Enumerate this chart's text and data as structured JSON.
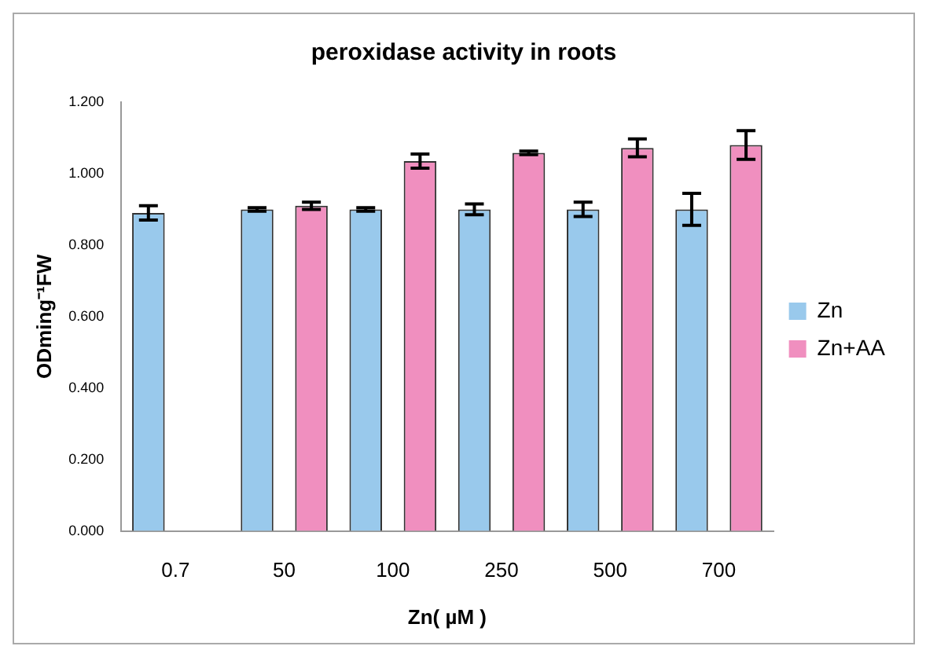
{
  "chart_data": {
    "type": "bar",
    "title": "peroxidase activity in roots",
    "xlabel": "Zn( µM )",
    "ylabel": "ODming⁻¹FW",
    "categories": [
      "0.7",
      "50",
      "100",
      "250",
      "500",
      "700"
    ],
    "series": [
      {
        "name": "Zn",
        "color": "#99c9ec",
        "values": [
          0.89,
          0.9,
          0.9,
          0.9,
          0.9,
          0.9
        ],
        "errors": [
          0.02,
          0.005,
          0.005,
          0.015,
          0.02,
          0.045
        ]
      },
      {
        "name": "Zn+AA",
        "color": "#f08fbf",
        "values": [
          null,
          0.91,
          1.035,
          1.058,
          1.072,
          1.08
        ],
        "errors": [
          null,
          0.01,
          0.02,
          0.005,
          0.025,
          0.04
        ]
      }
    ],
    "ylim": [
      0,
      1.2
    ],
    "yticks": [
      {
        "value": 0,
        "label": "0.000"
      },
      {
        "value": 0.2,
        "label": "0.200"
      },
      {
        "value": 0.4,
        "label": "0.400"
      },
      {
        "value": 0.6,
        "label": "0.600"
      },
      {
        "value": 0.8,
        "label": "0.800"
      },
      {
        "value": 1,
        "label": "1.000"
      },
      {
        "value": 1.2,
        "label": "1.200"
      }
    ],
    "grid": false,
    "legend": "right"
  }
}
